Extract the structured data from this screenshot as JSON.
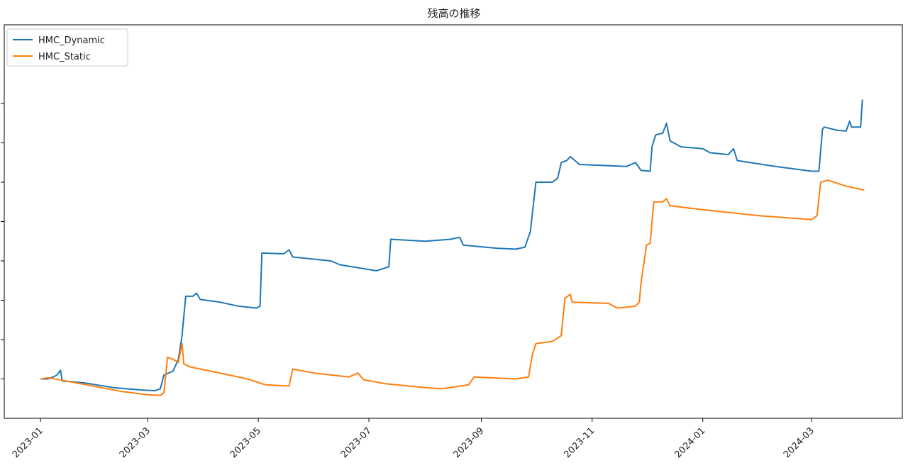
{
  "chart_data": {
    "type": "line",
    "title": "残高の推移",
    "xlabel": "",
    "ylabel": "",
    "x_axis": "date",
    "xlim": [
      "2022-12-12",
      "2024-04-20"
    ],
    "ylim": [
      0,
      100
    ],
    "y_tick_values": [
      10,
      20,
      30,
      40,
      50,
      60,
      70,
      80
    ],
    "y_tick_labels_visible": false,
    "x_ticks": [
      "2023-01",
      "2023-03",
      "2023-05",
      "2023-07",
      "2023-09",
      "2023-11",
      "2024-01",
      "2024-03"
    ],
    "x_tick_dates": [
      "2023-01-01",
      "2023-03-01",
      "2023-05-01",
      "2023-07-01",
      "2023-09-01",
      "2023-11-01",
      "2024-01-01",
      "2024-03-01"
    ],
    "grid": false,
    "legend": "top-left",
    "series": [
      {
        "name": "HMC_Dynamic",
        "color": "#1f77b4",
        "points": [
          [
            "2023-01-01",
            10.0
          ],
          [
            "2023-01-05",
            10.0
          ],
          [
            "2023-01-08",
            10.5
          ],
          [
            "2023-01-10",
            11.0
          ],
          [
            "2023-01-12",
            12.2
          ],
          [
            "2023-01-13",
            9.5
          ],
          [
            "2023-01-25",
            9.0
          ],
          [
            "2023-02-10",
            7.8
          ],
          [
            "2023-02-25",
            7.2
          ],
          [
            "2023-03-05",
            7.0
          ],
          [
            "2023-03-08",
            7.5
          ],
          [
            "2023-03-10",
            11.0
          ],
          [
            "2023-03-15",
            12.0
          ],
          [
            "2023-03-18",
            15.0
          ],
          [
            "2023-03-20",
            21.0
          ],
          [
            "2023-03-22",
            31.0
          ],
          [
            "2023-03-26",
            31.0
          ],
          [
            "2023-03-28",
            31.8
          ],
          [
            "2023-03-30",
            30.2
          ],
          [
            "2023-04-10",
            29.5
          ],
          [
            "2023-04-20",
            28.5
          ],
          [
            "2023-04-30",
            28.0
          ],
          [
            "2023-05-02",
            28.5
          ],
          [
            "2023-05-03",
            42.0
          ],
          [
            "2023-05-15",
            41.8
          ],
          [
            "2023-05-18",
            42.8
          ],
          [
            "2023-05-20",
            41.0
          ],
          [
            "2023-06-10",
            40.0
          ],
          [
            "2023-06-15",
            39.0
          ],
          [
            "2023-07-05",
            37.5
          ],
          [
            "2023-07-12",
            38.5
          ],
          [
            "2023-07-13",
            45.5
          ],
          [
            "2023-08-01",
            45.0
          ],
          [
            "2023-08-15",
            45.5
          ],
          [
            "2023-08-20",
            46.0
          ],
          [
            "2023-08-22",
            44.0
          ],
          [
            "2023-09-10",
            43.2
          ],
          [
            "2023-09-20",
            43.0
          ],
          [
            "2023-09-25",
            43.5
          ],
          [
            "2023-09-28",
            47.5
          ],
          [
            "2023-10-01",
            60.0
          ],
          [
            "2023-10-10",
            60.0
          ],
          [
            "2023-10-13",
            61.0
          ],
          [
            "2023-10-15",
            65.0
          ],
          [
            "2023-10-18",
            65.5
          ],
          [
            "2023-10-20",
            66.5
          ],
          [
            "2023-10-25",
            64.5
          ],
          [
            "2023-11-20",
            64.0
          ],
          [
            "2023-11-25",
            65.0
          ],
          [
            "2023-11-28",
            63.0
          ],
          [
            "2023-12-03",
            62.8
          ],
          [
            "2023-12-04",
            69.0
          ],
          [
            "2023-12-06",
            72.0
          ],
          [
            "2023-12-10",
            72.5
          ],
          [
            "2023-12-12",
            75.0
          ],
          [
            "2023-12-14",
            70.5
          ],
          [
            "2023-12-20",
            69.0
          ],
          [
            "2024-01-01",
            68.5
          ],
          [
            "2024-01-05",
            67.5
          ],
          [
            "2024-01-15",
            67.0
          ],
          [
            "2024-01-18",
            68.5
          ],
          [
            "2024-01-20",
            65.5
          ],
          [
            "2024-02-10",
            64.0
          ],
          [
            "2024-03-01",
            62.8
          ],
          [
            "2024-03-05",
            62.8
          ],
          [
            "2024-03-07",
            73.5
          ],
          [
            "2024-03-08",
            74.0
          ],
          [
            "2024-03-15",
            73.2
          ],
          [
            "2024-03-20",
            73.0
          ],
          [
            "2024-03-22",
            75.5
          ],
          [
            "2024-03-23",
            74.0
          ],
          [
            "2024-03-28",
            74.0
          ],
          [
            "2024-03-29",
            81.0
          ]
        ]
      },
      {
        "name": "HMC_Static",
        "color": "#ff7f0e",
        "points": [
          [
            "2023-01-01",
            10.0
          ],
          [
            "2023-01-05",
            10.3
          ],
          [
            "2023-01-15",
            9.5
          ],
          [
            "2023-02-01",
            8.0
          ],
          [
            "2023-02-15",
            6.8
          ],
          [
            "2023-03-01",
            6.0
          ],
          [
            "2023-03-08",
            5.8
          ],
          [
            "2023-03-10",
            6.5
          ],
          [
            "2023-03-12",
            15.5
          ],
          [
            "2023-03-15",
            15.0
          ],
          [
            "2023-03-18",
            14.2
          ],
          [
            "2023-03-20",
            19.0
          ],
          [
            "2023-03-21",
            13.8
          ],
          [
            "2023-03-25",
            13.0
          ],
          [
            "2023-04-15",
            11.0
          ],
          [
            "2023-04-25",
            10.0
          ],
          [
            "2023-05-05",
            8.5
          ],
          [
            "2023-05-18",
            8.2
          ],
          [
            "2023-05-20",
            12.5
          ],
          [
            "2023-06-01",
            11.5
          ],
          [
            "2023-06-20",
            10.5
          ],
          [
            "2023-06-25",
            11.5
          ],
          [
            "2023-06-28",
            9.8
          ],
          [
            "2023-07-10",
            8.8
          ],
          [
            "2023-08-01",
            7.8
          ],
          [
            "2023-08-10",
            7.5
          ],
          [
            "2023-08-25",
            8.5
          ],
          [
            "2023-08-28",
            10.5
          ],
          [
            "2023-09-20",
            10.0
          ],
          [
            "2023-09-27",
            10.5
          ],
          [
            "2023-09-29",
            16.0
          ],
          [
            "2023-10-01",
            19.0
          ],
          [
            "2023-10-10",
            19.5
          ],
          [
            "2023-10-15",
            21.0
          ],
          [
            "2023-10-17",
            30.5
          ],
          [
            "2023-10-20",
            31.5
          ],
          [
            "2023-10-21",
            29.5
          ],
          [
            "2023-11-10",
            29.2
          ],
          [
            "2023-11-15",
            28.0
          ],
          [
            "2023-11-25",
            28.5
          ],
          [
            "2023-11-27",
            29.5
          ],
          [
            "2023-11-28",
            34.5
          ],
          [
            "2023-12-01",
            44.0
          ],
          [
            "2023-12-03",
            44.5
          ],
          [
            "2023-12-05",
            55.0
          ],
          [
            "2023-12-10",
            55.0
          ],
          [
            "2023-12-12",
            55.8
          ],
          [
            "2023-12-14",
            54.0
          ],
          [
            "2024-01-01",
            53.0
          ],
          [
            "2024-02-01",
            51.5
          ],
          [
            "2024-03-01",
            50.5
          ],
          [
            "2024-03-04",
            51.5
          ],
          [
            "2024-03-06",
            60.0
          ],
          [
            "2024-03-10",
            60.5
          ],
          [
            "2024-03-20",
            59.0
          ],
          [
            "2024-03-30",
            58.0
          ]
        ]
      }
    ]
  }
}
